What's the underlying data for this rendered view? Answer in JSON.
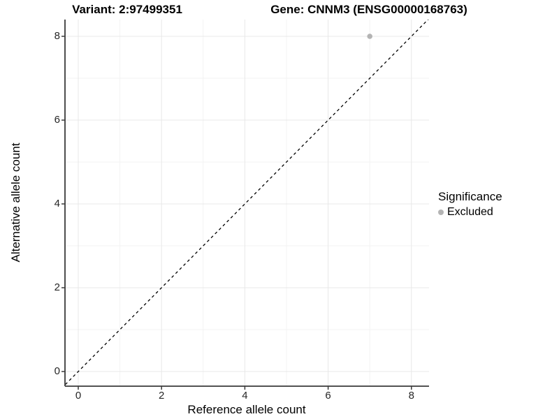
{
  "chart_data": {
    "type": "scatter",
    "titles": {
      "left": "Variant: 2:97499351",
      "right": "Gene: CNNM3 (ENSG00000168763)"
    },
    "xlabel": "Reference allele count",
    "ylabel": "Alternative allele count",
    "xlim": [
      -0.4,
      8.4
    ],
    "ylim": [
      -0.4,
      8.4
    ],
    "x_ticks": [
      0,
      2,
      4,
      6,
      8
    ],
    "y_ticks": [
      0,
      2,
      4,
      6,
      8
    ],
    "minor_ticks": [
      1,
      3,
      5,
      7
    ],
    "grid": true,
    "points": [
      {
        "x": 7,
        "y": 8,
        "series": "Excluded"
      }
    ],
    "reference_line": {
      "type": "identity",
      "style": "dashed",
      "from": -0.5,
      "to": 8.6
    },
    "legend": {
      "position": "right",
      "title": "Significance",
      "items": [
        {
          "label": "Excluded",
          "color": "#b4b4b4"
        }
      ]
    },
    "colors": {
      "point": "#b4b4b4",
      "grid_major": "#e8e8e8",
      "grid_minor": "#f3f3f3",
      "axis": "#3a3a3a",
      "dashed_line": "#000000",
      "background": "#ffffff"
    }
  }
}
